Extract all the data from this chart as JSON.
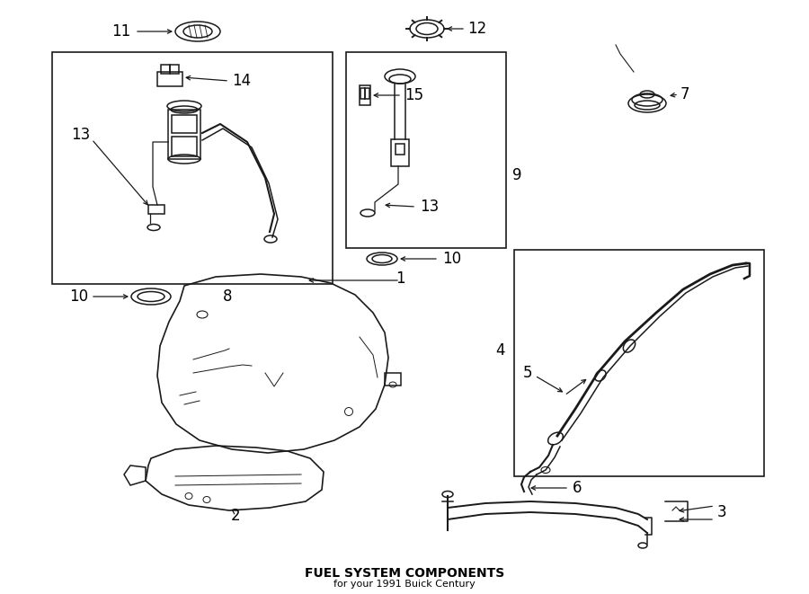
{
  "title": "FUEL SYSTEM COMPONENTS",
  "subtitle": "for your 1991 Buick Century",
  "bg_color": "#ffffff",
  "line_color": "#1a1a1a",
  "font_color": "#000000",
  "label_fontsize": 12,
  "title_fontsize": 10
}
